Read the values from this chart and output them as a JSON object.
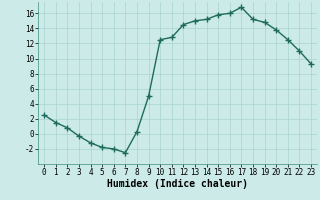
{
  "x": [
    0,
    1,
    2,
    3,
    4,
    5,
    6,
    7,
    8,
    9,
    10,
    11,
    12,
    13,
    14,
    15,
    16,
    17,
    18,
    19,
    20,
    21,
    22,
    23
  ],
  "y": [
    2.5,
    1.5,
    0.8,
    -0.3,
    -1.2,
    -1.8,
    -2.0,
    -2.5,
    0.3,
    5.0,
    12.5,
    12.8,
    14.5,
    15.0,
    15.2,
    15.8,
    16.0,
    16.8,
    15.2,
    14.8,
    13.8,
    12.5,
    11.0,
    9.3
  ],
  "xlim": [
    -0.5,
    23.5
  ],
  "ylim": [
    -4,
    17.5
  ],
  "yticks": [
    -2,
    0,
    2,
    4,
    6,
    8,
    10,
    12,
    14,
    16
  ],
  "xticks": [
    0,
    1,
    2,
    3,
    4,
    5,
    6,
    7,
    8,
    9,
    10,
    11,
    12,
    13,
    14,
    15,
    16,
    17,
    18,
    19,
    20,
    21,
    22,
    23
  ],
  "xlabel": "Humidex (Indice chaleur)",
  "line_color": "#1e6b5e",
  "bg_color": "#cceae8",
  "grid_color": "#aad4d0",
  "marker": "+",
  "markersize": 4,
  "linewidth": 1.0,
  "xlabel_fontsize": 7,
  "tick_fontsize": 5.5
}
